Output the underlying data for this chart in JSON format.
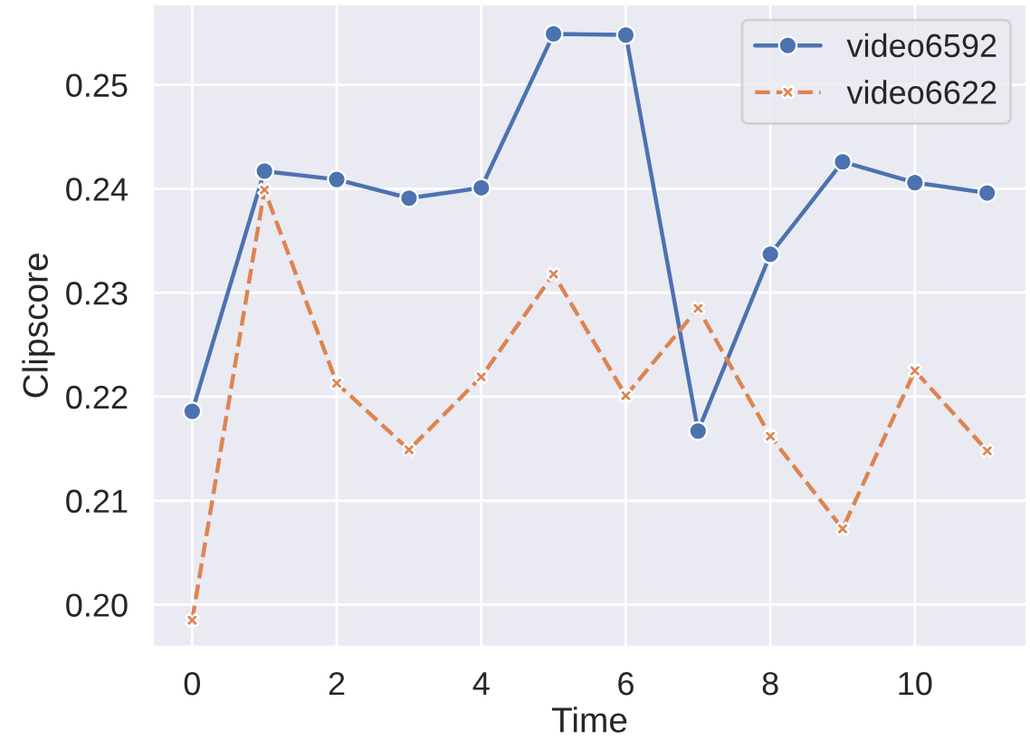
{
  "chart_data": {
    "type": "line",
    "xlabel": "Time",
    "ylabel": "Clipscore",
    "x": [
      0,
      1,
      2,
      3,
      4,
      5,
      6,
      7,
      8,
      9,
      10,
      11
    ],
    "series": [
      {
        "name": "video6592",
        "color": "#4c72b0",
        "marker": "circle",
        "line_style": "solid",
        "values": [
          0.2186,
          0.2417,
          0.2409,
          0.2391,
          0.2401,
          0.2549,
          0.2548,
          0.2167,
          0.2337,
          0.2426,
          0.2406,
          0.2396
        ]
      },
      {
        "name": "video6622",
        "color": "#dd8452",
        "marker": "cross",
        "line_style": "dashed",
        "values": [
          0.1985,
          0.2399,
          0.2213,
          0.2149,
          0.2219,
          0.2318,
          0.2201,
          0.2285,
          0.2162,
          0.2073,
          0.2225,
          0.2148
        ]
      }
    ],
    "xlim": [
      -0.55,
      11.55
    ],
    "ylim": [
      0.1959,
      0.2578
    ],
    "xticks": [
      0,
      2,
      4,
      6,
      8,
      10
    ],
    "yticks": [
      {
        "value": 0.2,
        "label": "0.20"
      },
      {
        "value": 0.21,
        "label": "0.21"
      },
      {
        "value": 0.22,
        "label": "0.22"
      },
      {
        "value": 0.23,
        "label": "0.23"
      },
      {
        "value": 0.24,
        "label": "0.24"
      },
      {
        "value": 0.25,
        "label": "0.25"
      }
    ],
    "grid": true,
    "legend": "top right"
  }
}
